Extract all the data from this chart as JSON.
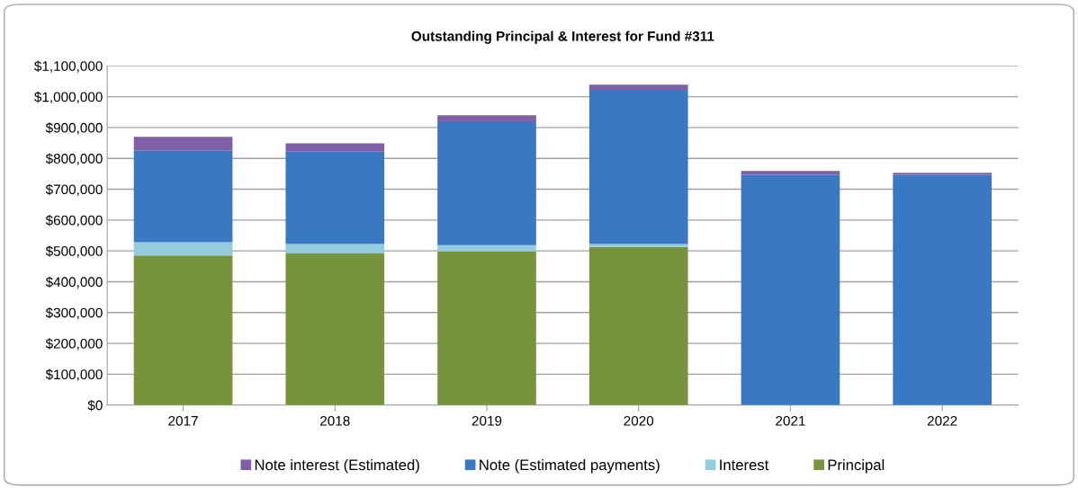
{
  "chart_data": {
    "type": "bar",
    "title": "Outstanding Principal & Interest for Fund #311",
    "categories": [
      "2017",
      "2018",
      "2019",
      "2020",
      "2021",
      "2022"
    ],
    "stacked": true,
    "series": [
      {
        "name": "Principal",
        "color": "#77933c",
        "values": [
          485000,
          492000,
          498000,
          513000,
          0,
          0
        ]
      },
      {
        "name": "Interest",
        "color": "#93cddd",
        "values": [
          43000,
          30000,
          21000,
          9000,
          0,
          0
        ]
      },
      {
        "name": "Note (Estimated payments)",
        "color": "#3a78c4",
        "values": [
          298000,
          301000,
          398000,
          500000,
          747000,
          747000
        ]
      },
      {
        "name": "Note interest (Estimated)",
        "color": "#7f5fa8",
        "values": [
          44000,
          26000,
          23000,
          17000,
          12000,
          6000
        ]
      }
    ],
    "ylim": [
      0,
      1100000
    ],
    "yticks": [
      {
        "value": 0,
        "label": "$0"
      },
      {
        "value": 100000,
        "label": "$100,000"
      },
      {
        "value": 200000,
        "label": "$200,000"
      },
      {
        "value": 300000,
        "label": "$300,000"
      },
      {
        "value": 400000,
        "label": "$400,000"
      },
      {
        "value": 500000,
        "label": "$500,000"
      },
      {
        "value": 600000,
        "label": "$600,000"
      },
      {
        "value": 700000,
        "label": "$700,000"
      },
      {
        "value": 800000,
        "label": "$800,000"
      },
      {
        "value": 900000,
        "label": "$900,000"
      },
      {
        "value": 1000000,
        "label": "$1,000,000"
      },
      {
        "value": 1100000,
        "label": "$1,100,000"
      }
    ],
    "grid": "y",
    "legend": "bottom"
  }
}
